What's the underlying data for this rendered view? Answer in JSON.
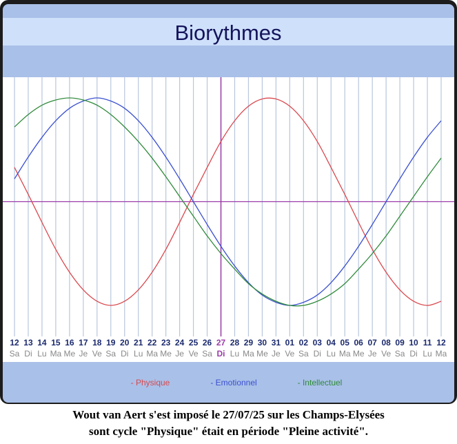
{
  "chart_data": {
    "type": "line",
    "title": "Biorythmes",
    "categories": [
      "12",
      "13",
      "14",
      "15",
      "16",
      "17",
      "18",
      "19",
      "20",
      "21",
      "22",
      "23",
      "24",
      "25",
      "26",
      "27",
      "28",
      "29",
      "30",
      "31",
      "01",
      "02",
      "03",
      "04",
      "05",
      "06",
      "07",
      "08",
      "09",
      "10",
      "11",
      "12"
    ],
    "weekdays": [
      "Sa",
      "Di",
      "Lu",
      "Ma",
      "Me",
      "Je",
      "Ve",
      "Sa",
      "Di",
      "Lu",
      "Ma",
      "Me",
      "Je",
      "Ve",
      "Sa",
      "Di",
      "Lu",
      "Ma",
      "Me",
      "Je",
      "Ve",
      "Sa",
      "Di",
      "Lu",
      "Ma",
      "Me",
      "Je",
      "Ve",
      "Sa",
      "Di",
      "Lu",
      "Ma"
    ],
    "highlight_index": 15,
    "highlight_color": "#9b3aa8",
    "ylim": [
      -100,
      100
    ],
    "series": [
      {
        "name": "- Physique",
        "color": "#d9484e",
        "values": [
          33,
          7,
          -20,
          -46,
          -68,
          -85,
          -96,
          -100,
          -96,
          -85,
          -68,
          -46,
          -20,
          7,
          33,
          58,
          78,
          92,
          99,
          99,
          92,
          78,
          58,
          33,
          7,
          -20,
          -46,
          -68,
          -85,
          -96,
          -100,
          -96
        ]
      },
      {
        "name": "- Emotionnel",
        "color": "#3a4fd0",
        "values": [
          22,
          43,
          62,
          78,
          90,
          97,
          100,
          97,
          90,
          78,
          62,
          43,
          22,
          0,
          -22,
          -43,
          -62,
          -78,
          -90,
          -97,
          -100,
          -97,
          -90,
          -78,
          -62,
          -43,
          -22,
          0,
          22,
          43,
          62,
          78
        ]
      },
      {
        "name": "- Intellectuel",
        "color": "#2f8a3a",
        "values": [
          72,
          84,
          93,
          98,
          100,
          98,
          93,
          84,
          72,
          58,
          42,
          24,
          5,
          -14,
          -33,
          -50,
          -65,
          -79,
          -89,
          -96,
          -100,
          -100,
          -96,
          -89,
          -79,
          -65,
          -50,
          -33,
          -14,
          5,
          24,
          42
        ]
      }
    ],
    "caption": [
      "Wout van Aert s'est imposé le 27/07/25 sur les Champs-Elysées",
      "sont cycle \"Physique\" était en période \"Pleine activité\"."
    ]
  }
}
